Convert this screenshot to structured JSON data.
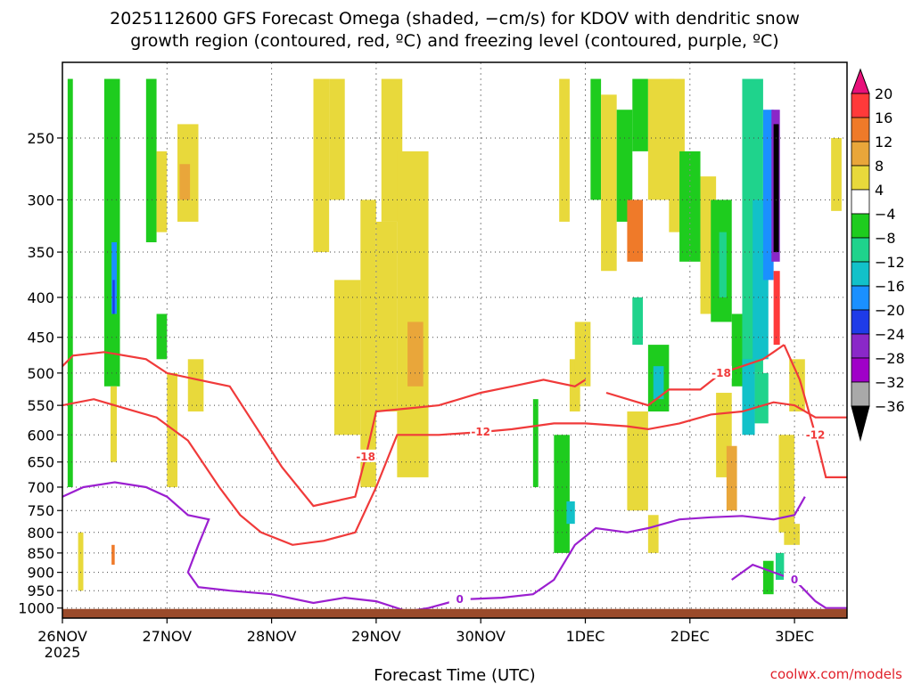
{
  "title": {
    "line1": "2025112600 GFS Forecast Omega (shaded, −cm/s) for KDOV with dendritic snow",
    "line2": "growth region (contoured, red, ºC) and freezing level (contoured, purple, ºC)"
  },
  "credit": "coolwx.com/models",
  "chart_data": {
    "type": "heatmap",
    "title": "2025112600 GFS Forecast Omega (shaded, −cm/s) for KDOV with dendritic snow growth region (contoured, red, ºC) and freezing level (contoured, purple, ºC)",
    "xlabel": "Forecast Time (UTC)",
    "ylabel": "",
    "x_start": "2025-11-26 00Z",
    "x_ticks": [
      {
        "label": "26NOV",
        "sublabel": "2025",
        "day": 0
      },
      {
        "label": "27NOV",
        "sublabel": "",
        "day": 1
      },
      {
        "label": "28NOV",
        "sublabel": "",
        "day": 2
      },
      {
        "label": "29NOV",
        "sublabel": "",
        "day": 3
      },
      {
        "label": "30NOV",
        "sublabel": "",
        "day": 4
      },
      {
        "label": "1DEC",
        "sublabel": "",
        "day": 5
      },
      {
        "label": "2DEC",
        "sublabel": "",
        "day": 6
      },
      {
        "label": "3DEC",
        "sublabel": "",
        "day": 7
      }
    ],
    "xlim_days": [
      0,
      7.5
    ],
    "y_ticks": [
      250,
      300,
      350,
      400,
      450,
      500,
      550,
      600,
      650,
      700,
      750,
      800,
      850,
      900,
      950,
      1000
    ],
    "ylim": [
      200,
      1030
    ],
    "y_scale": "log",
    "y_inverted": true,
    "grid": "dotted",
    "colorbar": {
      "labels": [
        "20",
        "16",
        "12",
        "8",
        "4",
        "−4",
        "−8",
        "−12",
        "−16",
        "−20",
        "−24",
        "−28",
        "−32",
        "−36"
      ],
      "colors": [
        "#e8117a",
        "#ff3a3a",
        "#ef7a29",
        "#e9a63a",
        "#e8d93b",
        "#ffffff",
        "#1ecc1e",
        "#1fd38c",
        "#12c1c9",
        "#1a90ff",
        "#1e3be8",
        "#8a28c8",
        "#a000c8",
        "#a9a9a9",
        "#000000"
      ]
    },
    "shaded_cells": [
      {
        "t0": 0.05,
        "t1": 0.1,
        "p0": 210,
        "p1": 700,
        "v": -8
      },
      {
        "t0": 0.4,
        "t1": 0.55,
        "p0": 210,
        "p1": 520,
        "v": -8
      },
      {
        "t0": 0.47,
        "t1": 0.52,
        "p0": 340,
        "p1": 420,
        "v": -22
      },
      {
        "t0": 0.48,
        "t1": 0.5,
        "p0": 380,
        "p1": 420,
        "v": -26
      },
      {
        "t0": 0.46,
        "t1": 0.52,
        "p0": 520,
        "p1": 650,
        "v": 6
      },
      {
        "t0": 0.15,
        "t1": 0.2,
        "p0": 800,
        "p1": 950,
        "v": 5
      },
      {
        "t0": 0.47,
        "t1": 0.5,
        "p0": 830,
        "p1": 880,
        "v": 12
      },
      {
        "t0": 0.8,
        "t1": 0.9,
        "p0": 210,
        "p1": 340,
        "v": -8
      },
      {
        "t0": 0.9,
        "t1": 1.0,
        "p0": 260,
        "p1": 330,
        "v": 5
      },
      {
        "t0": 1.1,
        "t1": 1.3,
        "p0": 240,
        "p1": 320,
        "v": 5
      },
      {
        "t0": 1.12,
        "t1": 1.22,
        "p0": 270,
        "p1": 300,
        "v": 9
      },
      {
        "t0": 1.0,
        "t1": 1.1,
        "p0": 500,
        "p1": 700,
        "v": 5
      },
      {
        "t0": 1.2,
        "t1": 1.35,
        "p0": 480,
        "p1": 560,
        "v": 5
      },
      {
        "t0": 0.9,
        "t1": 1.0,
        "p0": 420,
        "p1": 480,
        "v": -8
      },
      {
        "t0": 2.4,
        "t1": 2.55,
        "p0": 210,
        "p1": 350,
        "v": 5
      },
      {
        "t0": 2.55,
        "t1": 2.7,
        "p0": 210,
        "p1": 300,
        "v": 5
      },
      {
        "t0": 2.6,
        "t1": 2.85,
        "p0": 380,
        "p1": 600,
        "v": 5
      },
      {
        "t0": 2.85,
        "t1": 3.0,
        "p0": 300,
        "p1": 700,
        "v": 5
      },
      {
        "t0": 3.05,
        "t1": 3.25,
        "p0": 210,
        "p1": 320,
        "v": 5
      },
      {
        "t0": 3.0,
        "t1": 3.2,
        "p0": 320,
        "p1": 560,
        "v": 5
      },
      {
        "t0": 3.2,
        "t1": 3.5,
        "p0": 260,
        "p1": 680,
        "v": 5
      },
      {
        "t0": 3.3,
        "t1": 3.45,
        "p0": 430,
        "p1": 520,
        "v": 9
      },
      {
        "t0": 4.5,
        "t1": 4.55,
        "p0": 540,
        "p1": 700,
        "v": -8
      },
      {
        "t0": 4.75,
        "t1": 4.85,
        "p0": 210,
        "p1": 320,
        "v": 5
      },
      {
        "t0": 4.85,
        "t1": 4.95,
        "p0": 480,
        "p1": 560,
        "v": 5
      },
      {
        "t0": 4.7,
        "t1": 4.85,
        "p0": 600,
        "p1": 850,
        "v": -8
      },
      {
        "t0": 4.82,
        "t1": 4.9,
        "p0": 730,
        "p1": 780,
        "v": -16
      },
      {
        "t0": 4.9,
        "t1": 5.05,
        "p0": 430,
        "p1": 520,
        "v": 5
      },
      {
        "t0": 5.05,
        "t1": 5.15,
        "p0": 210,
        "p1": 300,
        "v": -8
      },
      {
        "t0": 5.15,
        "t1": 5.3,
        "p0": 220,
        "p1": 370,
        "v": 5
      },
      {
        "t0": 5.3,
        "t1": 5.45,
        "p0": 230,
        "p1": 320,
        "v": -8
      },
      {
        "t0": 5.4,
        "t1": 5.55,
        "p0": 300,
        "p1": 360,
        "v": 13
      },
      {
        "t0": 5.45,
        "t1": 5.6,
        "p0": 210,
        "p1": 260,
        "v": -8
      },
      {
        "t0": 5.6,
        "t1": 5.85,
        "p0": 210,
        "p1": 300,
        "v": 5
      },
      {
        "t0": 5.45,
        "t1": 5.55,
        "p0": 400,
        "p1": 460,
        "v": -13
      },
      {
        "t0": 5.6,
        "t1": 5.8,
        "p0": 460,
        "p1": 560,
        "v": -8
      },
      {
        "t0": 5.65,
        "t1": 5.75,
        "p0": 490,
        "p1": 540,
        "v": -16
      },
      {
        "t0": 5.4,
        "t1": 5.6,
        "p0": 560,
        "p1": 750,
        "v": 5
      },
      {
        "t0": 5.6,
        "t1": 5.7,
        "p0": 760,
        "p1": 850,
        "v": 5
      },
      {
        "t0": 5.8,
        "t1": 5.95,
        "p0": 210,
        "p1": 330,
        "v": 5
      },
      {
        "t0": 5.9,
        "t1": 6.1,
        "p0": 260,
        "p1": 360,
        "v": -8
      },
      {
        "t0": 6.1,
        "t1": 6.25,
        "p0": 280,
        "p1": 420,
        "v": 5
      },
      {
        "t0": 6.2,
        "t1": 6.4,
        "p0": 300,
        "p1": 430,
        "v": -8
      },
      {
        "t0": 6.28,
        "t1": 6.35,
        "p0": 330,
        "p1": 400,
        "v": -13
      },
      {
        "t0": 6.25,
        "t1": 6.4,
        "p0": 530,
        "p1": 680,
        "v": 5
      },
      {
        "t0": 6.35,
        "t1": 6.45,
        "p0": 620,
        "p1": 750,
        "v": 9
      },
      {
        "t0": 6.4,
        "t1": 6.55,
        "p0": 420,
        "p1": 520,
        "v": -8
      },
      {
        "t0": 6.5,
        "t1": 6.7,
        "p0": 210,
        "p1": 500,
        "v": -13
      },
      {
        "t0": 6.6,
        "t1": 6.75,
        "p0": 300,
        "p1": 480,
        "v": -18
      },
      {
        "t0": 6.7,
        "t1": 6.8,
        "p0": 230,
        "p1": 380,
        "v": -22
      },
      {
        "t0": 6.78,
        "t1": 6.86,
        "p0": 230,
        "p1": 360,
        "v": -30
      },
      {
        "t0": 6.8,
        "t1": 6.85,
        "p0": 240,
        "p1": 350,
        "v": -40
      },
      {
        "t0": 6.8,
        "t1": 6.86,
        "p0": 370,
        "p1": 460,
        "v": 18
      },
      {
        "t0": 6.5,
        "t1": 6.62,
        "p0": 480,
        "p1": 600,
        "v": -16
      },
      {
        "t0": 6.62,
        "t1": 6.75,
        "p0": 500,
        "p1": 580,
        "v": -13
      },
      {
        "t0": 6.7,
        "t1": 6.8,
        "p0": 870,
        "p1": 960,
        "v": -8
      },
      {
        "t0": 6.82,
        "t1": 6.9,
        "p0": 850,
        "p1": 920,
        "v": -13
      },
      {
        "t0": 6.85,
        "t1": 7.0,
        "p0": 600,
        "p1": 800,
        "v": 5
      },
      {
        "t0": 6.9,
        "t1": 7.05,
        "p0": 780,
        "p1": 830,
        "v": 5
      },
      {
        "t0": 7.35,
        "t1": 7.45,
        "p0": 250,
        "p1": 310,
        "v": 5
      },
      {
        "t0": 6.95,
        "t1": 7.1,
        "p0": 480,
        "p1": 560,
        "v": 5
      }
    ],
    "contours_dgz": [
      {
        "label": "-18",
        "points": [
          [
            0,
            490
          ],
          [
            0.1,
            475
          ],
          [
            0.4,
            470
          ],
          [
            0.8,
            480
          ],
          [
            1.0,
            500
          ],
          [
            1.3,
            510
          ],
          [
            1.6,
            520
          ],
          [
            1.9,
            600
          ],
          [
            2.1,
            660
          ],
          [
            2.4,
            740
          ],
          [
            2.8,
            720
          ],
          [
            2.9,
            640
          ],
          [
            3.0,
            560
          ],
          [
            3.3,
            555
          ],
          [
            3.6,
            550
          ],
          [
            4.0,
            530
          ],
          [
            4.3,
            520
          ],
          [
            4.6,
            510
          ],
          [
            4.9,
            520
          ],
          [
            5.0,
            510
          ]
        ]
      },
      {
        "label": "-18",
        "points": [
          [
            5.2,
            530
          ],
          [
            5.6,
            550
          ],
          [
            5.8,
            525
          ],
          [
            6.1,
            525
          ],
          [
            6.3,
            500
          ],
          [
            6.5,
            490
          ],
          [
            6.7,
            480
          ],
          [
            6.8,
            470
          ],
          [
            6.9,
            460
          ]
        ]
      },
      {
        "label": "-12",
        "points": [
          [
            0,
            550
          ],
          [
            0.3,
            540
          ],
          [
            0.6,
            555
          ],
          [
            0.9,
            570
          ],
          [
            1.2,
            610
          ],
          [
            1.5,
            700
          ],
          [
            1.7,
            760
          ],
          [
            1.9,
            800
          ],
          [
            2.2,
            830
          ],
          [
            2.5,
            820
          ],
          [
            2.8,
            800
          ],
          [
            3.0,
            700
          ],
          [
            3.2,
            600
          ],
          [
            3.6,
            600
          ],
          [
            4.0,
            595
          ],
          [
            4.3,
            590
          ],
          [
            4.7,
            580
          ],
          [
            5.0,
            580
          ],
          [
            5.4,
            585
          ],
          [
            5.6,
            590
          ],
          [
            5.9,
            580
          ],
          [
            6.2,
            565
          ],
          [
            6.5,
            560
          ],
          [
            6.8,
            545
          ],
          [
            7.0,
            550
          ],
          [
            7.2,
            570
          ],
          [
            7.5,
            570
          ]
        ]
      },
      {
        "label": "-12",
        "points": [
          [
            6.9,
            460
          ],
          [
            7.05,
            510
          ],
          [
            7.2,
            600
          ],
          [
            7.3,
            680
          ],
          [
            7.5,
            680
          ]
        ]
      }
    ],
    "contours_freezing": [
      {
        "label": "0",
        "points": [
          [
            0,
            720
          ],
          [
            0.2,
            700
          ],
          [
            0.5,
            690
          ],
          [
            0.8,
            700
          ],
          [
            1.0,
            720
          ],
          [
            1.2,
            760
          ],
          [
            1.4,
            770
          ],
          [
            1.3,
            830
          ],
          [
            1.2,
            900
          ],
          [
            1.3,
            940
          ],
          [
            1.6,
            950
          ],
          [
            2.0,
            960
          ],
          [
            2.4,
            985
          ],
          [
            2.7,
            970
          ],
          [
            3.0,
            980
          ],
          [
            3.3,
            1010
          ],
          [
            3.5,
            1000
          ],
          [
            3.8,
            975
          ],
          [
            4.2,
            970
          ],
          [
            4.5,
            960
          ],
          [
            4.7,
            920
          ],
          [
            4.9,
            830
          ],
          [
            5.1,
            790
          ],
          [
            5.4,
            800
          ],
          [
            5.6,
            790
          ],
          [
            5.9,
            770
          ],
          [
            6.2,
            765
          ],
          [
            6.5,
            762
          ],
          [
            6.8,
            770
          ],
          [
            7.0,
            760
          ],
          [
            7.1,
            720
          ]
        ]
      },
      {
        "label": "0",
        "points": [
          [
            6.4,
            920
          ],
          [
            6.6,
            880
          ],
          [
            6.8,
            900
          ],
          [
            7.0,
            920
          ],
          [
            7.2,
            980
          ],
          [
            7.3,
            1000
          ],
          [
            7.5,
            1000
          ]
        ]
      }
    ],
    "surface": {
      "p": 1000,
      "color": "#9a4a2a"
    }
  }
}
